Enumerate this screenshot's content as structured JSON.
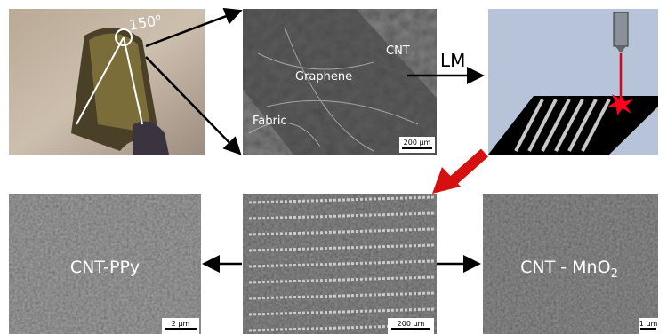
{
  "angle": {
    "value": "150",
    "unit": "o"
  },
  "sem_top": {
    "labels": [
      "Graphene",
      "CNT",
      "Fabric"
    ],
    "scale": "200 µm"
  },
  "process": "LM",
  "bottom_left": {
    "label": "CNT-PPy",
    "scale": "2 µm"
  },
  "bottom_middle": {
    "scale": "200 µm"
  },
  "bottom_right": {
    "label": "CNT - MnO",
    "label_subscript": "2",
    "scale": "1 µm"
  }
}
